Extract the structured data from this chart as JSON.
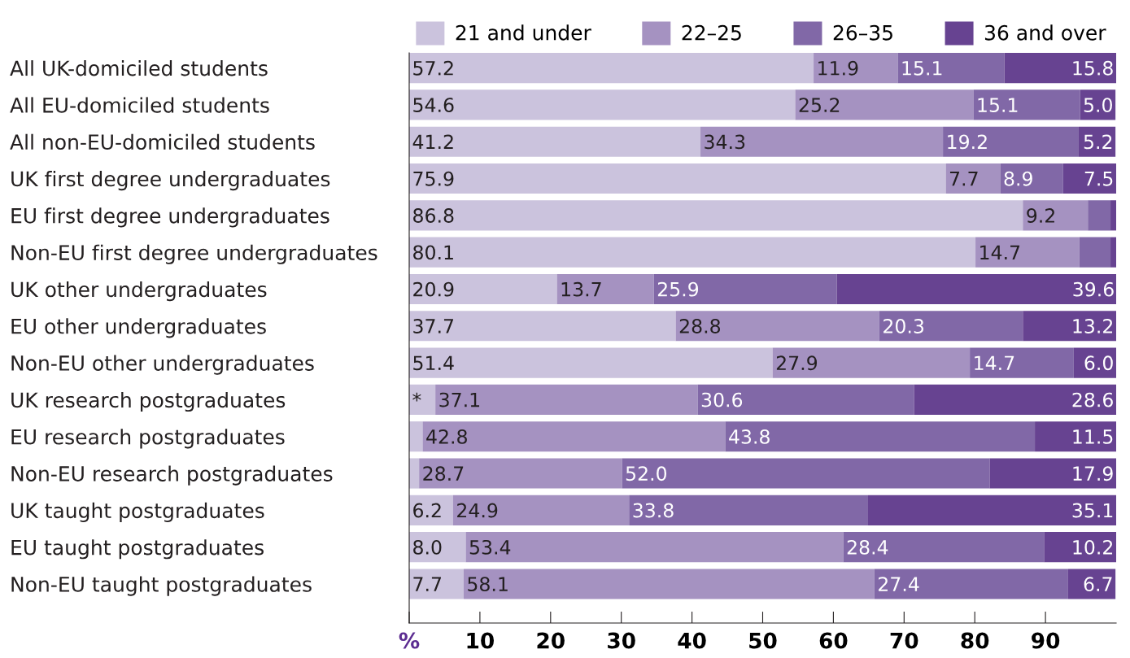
{
  "chart_data": {
    "type": "bar",
    "orientation": "horizontal",
    "stacked": true,
    "legend": "top",
    "grid": false,
    "categories": [
      "All UK-domiciled students",
      "All EU-domiciled students",
      "All non-EU-domiciled students",
      "UK first degree undergraduates",
      "EU first degree undergraduates",
      "Non-EU first degree undergraduates",
      "UK other undergraduates",
      "EU other undergraduates",
      "Non-EU other undergraduates",
      "UK research postgraduates",
      "EU research postgraduates",
      "Non-EU research postgraduates",
      "UK taught postgraduates",
      "EU taught postgraduates",
      "Non-EU taught postgraduates"
    ],
    "series": [
      {
        "name": "21 and under",
        "color": "#cbc3dd",
        "values": [
          57.2,
          54.6,
          41.2,
          75.9,
          86.8,
          80.1,
          20.9,
          37.7,
          51.4,
          3.7,
          1.9,
          1.4,
          6.2,
          8.0,
          7.7
        ],
        "value_labels": [
          "57.2",
          "54.6",
          "41.2",
          "75.9",
          "86.8",
          "80.1",
          "20.9",
          "37.7",
          "51.4",
          "*",
          null,
          null,
          "6.2",
          "8.0",
          "7.7"
        ]
      },
      {
        "name": "22–25",
        "color": "#a592c1",
        "values": [
          11.9,
          25.2,
          34.3,
          7.7,
          9.2,
          14.7,
          13.7,
          28.8,
          27.9,
          37.1,
          42.8,
          28.7,
          24.9,
          53.4,
          58.1
        ],
        "value_labels": [
          "11.9",
          "25.2",
          "34.3",
          "7.7",
          "9.2",
          "14.7",
          "13.7",
          "28.8",
          "27.9",
          "37.1",
          "42.8",
          "28.7",
          "24.9",
          "53.4",
          "58.1"
        ]
      },
      {
        "name": "26–35",
        "color": "#8168a7",
        "values": [
          15.1,
          15.1,
          19.2,
          8.9,
          3.2,
          4.4,
          25.9,
          20.3,
          14.7,
          30.6,
          43.8,
          52.0,
          33.8,
          28.4,
          27.4
        ],
        "value_labels": [
          "15.1",
          "15.1",
          "19.2",
          "8.9",
          null,
          null,
          "25.9",
          "20.3",
          "14.7",
          "30.6",
          "43.8",
          "52.0",
          "33.8",
          "28.4",
          "27.4"
        ]
      },
      {
        "name": "36 and over",
        "color": "#674391",
        "values": [
          15.8,
          5.0,
          5.2,
          7.5,
          0.8,
          0.8,
          39.6,
          13.2,
          6.0,
          28.6,
          11.5,
          17.9,
          35.1,
          10.2,
          6.7
        ],
        "value_labels": [
          "15.8",
          "5.0",
          "5.2",
          "7.5",
          null,
          null,
          "39.6",
          "13.2",
          "6.0",
          "28.6",
          "11.5",
          "17.9",
          "35.1",
          "10.2",
          "6.7"
        ]
      }
    ],
    "xlim": [
      0,
      100
    ],
    "xticks": [
      {
        "value": 0,
        "label": "%"
      },
      10,
      20,
      30,
      40,
      50,
      60,
      70,
      80,
      90
    ]
  }
}
